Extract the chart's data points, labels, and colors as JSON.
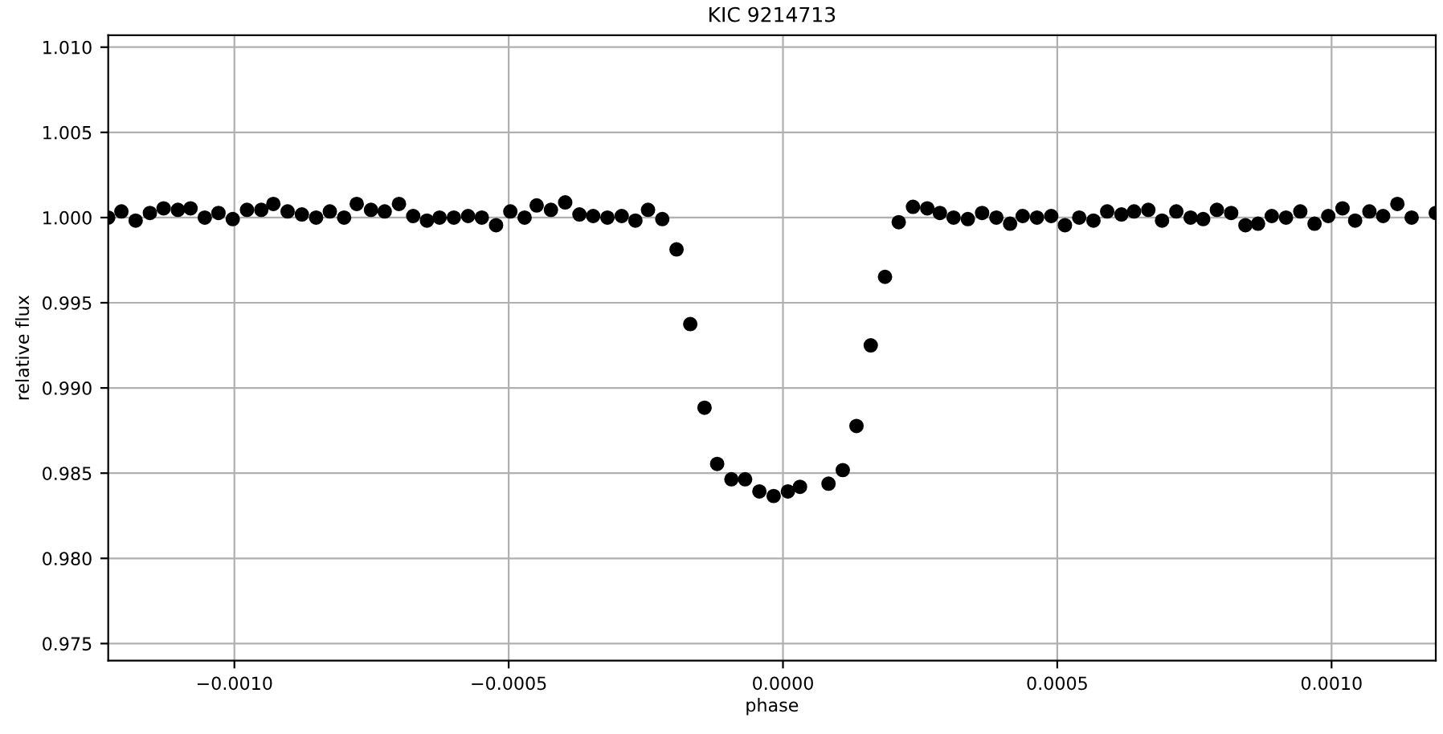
{
  "chart_data": {
    "type": "scatter",
    "title": "KIC 9214713",
    "xlabel": "phase",
    "ylabel": "relative flux",
    "x": [
      -0.00123,
      -0.001206,
      -0.00118,
      -0.001154,
      -0.001129,
      -0.001103,
      -0.00108,
      -0.001054,
      -0.001029,
      -0.001003,
      -0.000977,
      -0.000951,
      -0.000929,
      -0.000903,
      -0.000877,
      -0.000851,
      -0.000826,
      -0.0008,
      -0.000777,
      -0.000751,
      -0.000726,
      -0.0007,
      -0.000674,
      -0.000649,
      -0.000626,
      -0.0006,
      -0.000574,
      -0.000549,
      -0.000523,
      -0.000497,
      -0.000471,
      -0.000449,
      -0.000423,
      -0.000397,
      -0.000371,
      -0.000346,
      -0.00032,
      -0.000294,
      -0.000269,
      -0.000246,
      -0.00022,
      -0.000194,
      -0.000169,
      -0.000143,
      -0.00012,
      -9.4e-05,
      -6.9e-05,
      -4.3e-05,
      -1.7e-05,
      9e-06,
      3.1e-05,
      8.3e-05,
      0.000109,
      0.000134,
      0.00016,
      0.000186,
      0.000211,
      0.000237,
      0.000263,
      0.000286,
      0.000311,
      0.000337,
      0.000363,
      0.000389,
      0.000414,
      0.000437,
      0.000463,
      0.000489,
      0.000514,
      0.00054,
      0.000566,
      0.000591,
      0.000617,
      0.00064,
      0.000666,
      0.000691,
      0.000717,
      0.000743,
      0.000766,
      0.000791,
      0.000817,
      0.000843,
      0.000866,
      0.000891,
      0.000917,
      0.000943,
      0.000969,
      0.000994,
      0.00102,
      0.001043,
      0.001069,
      0.001094,
      0.00112,
      0.001146,
      0.00119
    ],
    "series": [
      {
        "color": "#000000",
        "values": [
          1.0,
          1.00036,
          0.99982,
          1.00027,
          1.00054,
          1.00045,
          1.00054,
          1.0,
          1.00027,
          0.99991,
          1.00045,
          1.00045,
          1.0008,
          1.00036,
          1.00018,
          1.0,
          1.00036,
          1.0,
          1.0008,
          1.00045,
          1.00036,
          1.0008,
          1.00009,
          0.99982,
          1.0,
          1.0,
          1.00009,
          1.0,
          0.99955,
          1.00036,
          1.0,
          1.00071,
          1.00045,
          1.00089,
          1.00018,
          1.00009,
          1.0,
          1.00009,
          0.99982,
          1.00045,
          0.99991,
          0.99813,
          0.99375,
          0.98884,
          0.98554,
          0.98464,
          0.98464,
          0.98393,
          0.98366,
          0.98393,
          0.9842,
          0.98438,
          0.98518,
          0.98777,
          0.9925,
          0.99652,
          0.99973,
          1.00063,
          1.00054,
          1.00027,
          1.0,
          0.99991,
          1.00027,
          1.0,
          0.99964,
          1.00009,
          1.0,
          1.00009,
          0.99955,
          1.0,
          0.99982,
          1.00036,
          1.00018,
          1.00036,
          1.00045,
          0.99982,
          1.00036,
          1.0,
          0.99991,
          1.00045,
          1.00027,
          0.99955,
          0.99964,
          1.00009,
          1.0,
          1.00036,
          0.99964,
          1.00009,
          1.00054,
          0.99982,
          1.00036,
          1.00009,
          1.0008,
          1.0,
          1.00027
        ]
      }
    ],
    "xlim": [
      -0.00123,
      0.00119
    ],
    "ylim": [
      0.974,
      1.0107
    ],
    "xticks": [
      {
        "value": -0.001,
        "label": "−0.0010"
      },
      {
        "value": -0.0005,
        "label": "−0.0005"
      },
      {
        "value": 0,
        "label": "0.0000"
      },
      {
        "value": 0.0005,
        "label": "0.0005"
      },
      {
        "value": 0.001,
        "label": "0.0010"
      }
    ],
    "yticks": [
      {
        "value": 0.975,
        "label": "0.975"
      },
      {
        "value": 0.98,
        "label": "0.980"
      },
      {
        "value": 0.985,
        "label": "0.985"
      },
      {
        "value": 0.99,
        "label": "0.990"
      },
      {
        "value": 0.995,
        "label": "0.995"
      },
      {
        "value": 1.0,
        "label": "1.000"
      },
      {
        "value": 1.005,
        "label": "1.005"
      },
      {
        "value": 1.01,
        "label": "1.010"
      }
    ],
    "grid": true,
    "marker": "circle"
  }
}
